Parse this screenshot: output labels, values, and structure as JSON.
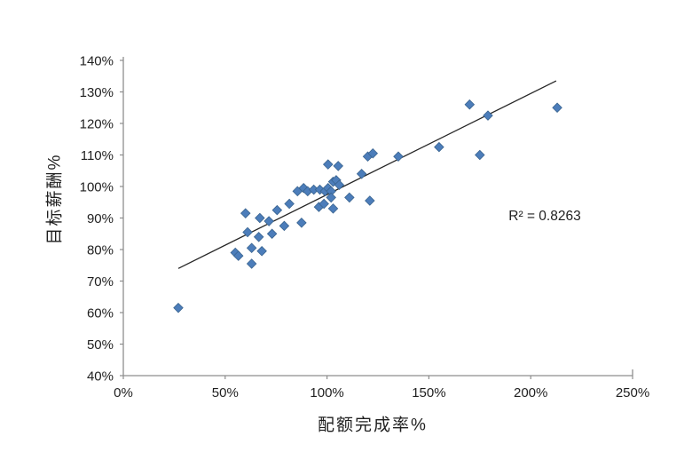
{
  "figure": {
    "background_color": "#ffffff",
    "xlabel": "配额完成率%",
    "ylabel": "目标薪酬%",
    "annotation": "R² = 0.8263"
  },
  "chart_data": {
    "type": "scatter",
    "title": "",
    "xlabel": "配额完成率%",
    "ylabel": "目标薪酬%",
    "annotation": "R² = 0.8263",
    "grid": false,
    "legend_position": "none",
    "xlim": [
      0,
      250
    ],
    "ylim": [
      40,
      140
    ],
    "x_tick_values": [
      0,
      50,
      100,
      150,
      200,
      250
    ],
    "x_tick_labels": [
      "0%",
      "50%",
      "100%",
      "150%",
      "200%",
      "250%"
    ],
    "y_tick_values": [
      40,
      50,
      60,
      70,
      80,
      90,
      100,
      110,
      120,
      130,
      140
    ],
    "y_tick_labels": [
      "40%",
      "50%",
      "60%",
      "70%",
      "80%",
      "90%",
      "100%",
      "110%",
      "120%",
      "130%",
      "140%"
    ],
    "series": [
      {
        "name": "目标薪酬% vs 配额完成率%",
        "marker": "diamond",
        "marker_color": "#4C7DBA",
        "marker_edge_color": "#3A648F",
        "points": [
          [
            27,
            61.5
          ],
          [
            55,
            79
          ],
          [
            56.5,
            78
          ],
          [
            63,
            80.5
          ],
          [
            68,
            79.5
          ],
          [
            63,
            75.5
          ],
          [
            61,
            85.5
          ],
          [
            66.5,
            84
          ],
          [
            73,
            85
          ],
          [
            79,
            87.5
          ],
          [
            87.5,
            88.5
          ],
          [
            60,
            91.5
          ],
          [
            67,
            90
          ],
          [
            71.5,
            89
          ],
          [
            75.5,
            92.5
          ],
          [
            81.5,
            94.5
          ],
          [
            85.5,
            98.5
          ],
          [
            88.5,
            99.5
          ],
          [
            90.5,
            98.5
          ],
          [
            93.5,
            99
          ],
          [
            96.5,
            99
          ],
          [
            99,
            98.5
          ],
          [
            100.5,
            99.5
          ],
          [
            102,
            98.5
          ],
          [
            103,
            101.5
          ],
          [
            104.5,
            102
          ],
          [
            106,
            100.5
          ],
          [
            100.5,
            107
          ],
          [
            105.5,
            106.5
          ],
          [
            96,
            93.5
          ],
          [
            98.5,
            94.5
          ],
          [
            103,
            93
          ],
          [
            102,
            96.5
          ],
          [
            111,
            96.5
          ],
          [
            117,
            104
          ],
          [
            120,
            109.5
          ],
          [
            122.5,
            110.5
          ],
          [
            121,
            95.5
          ],
          [
            135,
            109.5
          ],
          [
            155,
            112.5
          ],
          [
            170,
            126
          ],
          [
            175,
            110
          ],
          [
            179,
            122.5
          ],
          [
            213,
            125
          ]
        ]
      }
    ],
    "trendline": {
      "type": "linear",
      "x1": 27,
      "y1": 74,
      "x2": 212.5,
      "y2": 133.5,
      "color": "#262626",
      "r_squared": 0.8263
    },
    "axis_color": "#8e8e8e",
    "tick_label_color": "#1f1f1f",
    "tick_label_font_size": 15
  }
}
